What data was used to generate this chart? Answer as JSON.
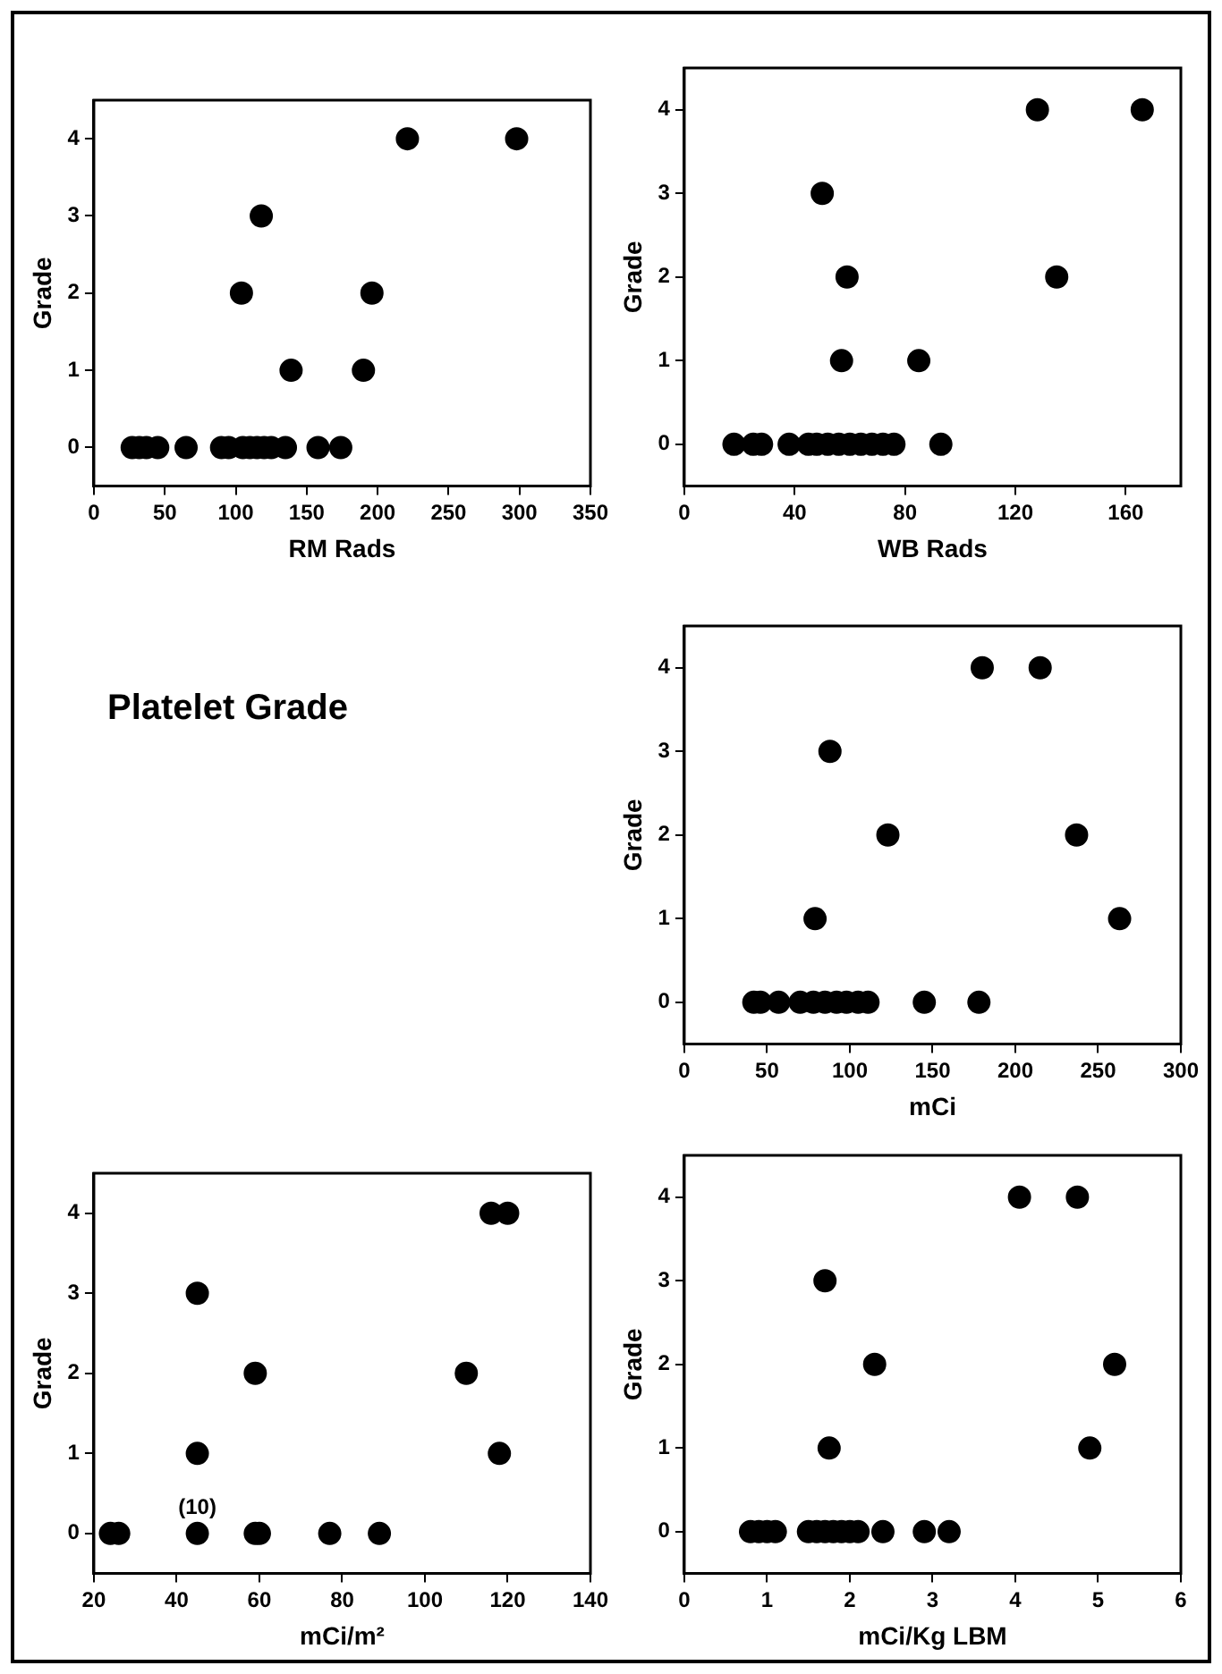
{
  "chart_data": [
    {
      "type": "scatter",
      "xlabel": "RM Rads",
      "ylabel": "Grade",
      "xlim": [
        0,
        350
      ],
      "xticks": [
        0,
        50,
        100,
        150,
        200,
        250,
        300,
        350
      ],
      "ylim": [
        -0.5,
        4.5
      ],
      "yticks": [
        0,
        1,
        2,
        3,
        4
      ],
      "grid": false,
      "legend": false,
      "marker": "circle",
      "series": [
        {
          "color": "#000000",
          "x": [
            27,
            32,
            37,
            45,
            65,
            90,
            95,
            105,
            110,
            115,
            120,
            125,
            135,
            158,
            174,
            139,
            190,
            104,
            196,
            118,
            221,
            298
          ],
          "values": [
            0,
            0,
            0,
            0,
            0,
            0,
            0,
            0,
            0,
            0,
            0,
            0,
            0,
            0,
            0,
            1,
            1,
            2,
            2,
            3,
            4,
            4
          ]
        }
      ]
    },
    {
      "type": "scatter",
      "xlabel": "WB Rads",
      "ylabel": "Grade",
      "xlim": [
        0,
        180
      ],
      "xticks": [
        0,
        40,
        80,
        120,
        160
      ],
      "ylim": [
        -0.5,
        4.5
      ],
      "yticks": [
        0,
        1,
        2,
        3,
        4
      ],
      "grid": false,
      "legend": false,
      "marker": "circle",
      "series": [
        {
          "color": "#000000",
          "x": [
            18,
            25,
            28,
            38,
            45,
            48,
            52,
            56,
            60,
            64,
            68,
            72,
            76,
            93,
            57,
            85,
            59,
            135,
            50,
            128,
            166
          ],
          "values": [
            0,
            0,
            0,
            0,
            0,
            0,
            0,
            0,
            0,
            0,
            0,
            0,
            0,
            0,
            1,
            1,
            2,
            2,
            3,
            4,
            4
          ]
        }
      ]
    },
    {
      "type": "other",
      "title": "Platelet Grade"
    },
    {
      "type": "scatter",
      "xlabel": "mCi",
      "ylabel": "Grade",
      "xlim": [
        0,
        300
      ],
      "xticks": [
        0,
        50,
        100,
        150,
        200,
        250,
        300
      ],
      "ylim": [
        -0.5,
        4.5
      ],
      "yticks": [
        0,
        1,
        2,
        3,
        4
      ],
      "grid": false,
      "legend": false,
      "marker": "circle",
      "series": [
        {
          "color": "#000000",
          "x": [
            42,
            46,
            57,
            70,
            78,
            85,
            92,
            98,
            105,
            111,
            145,
            178,
            79,
            263,
            123,
            237,
            88,
            180,
            215
          ],
          "values": [
            0,
            0,
            0,
            0,
            0,
            0,
            0,
            0,
            0,
            0,
            0,
            0,
            1,
            1,
            2,
            2,
            3,
            4,
            4
          ]
        }
      ]
    },
    {
      "type": "scatter",
      "xlabel": "mCi/m²",
      "ylabel": "Grade",
      "xlim": [
        20,
        140
      ],
      "xticks": [
        20,
        40,
        60,
        80,
        100,
        120,
        140
      ],
      "ylim": [
        -0.5,
        4.5
      ],
      "yticks": [
        0,
        1,
        2,
        3,
        4
      ],
      "grid": false,
      "legend": false,
      "marker": "circle",
      "annotations": [
        {
          "text": "(10)",
          "x": 45,
          "y": 0
        }
      ],
      "series": [
        {
          "color": "#000000",
          "x": [
            24,
            26,
            45,
            59,
            60,
            77,
            89,
            45,
            118,
            59,
            110,
            45,
            116,
            120
          ],
          "values": [
            0,
            0,
            0,
            0,
            0,
            0,
            0,
            1,
            1,
            2,
            2,
            3,
            4,
            4
          ]
        }
      ]
    },
    {
      "type": "scatter",
      "xlabel": "mCi/Kg LBM",
      "ylabel": "Grade",
      "xlim": [
        0,
        6
      ],
      "xticks": [
        0,
        1,
        2,
        3,
        4,
        5,
        6
      ],
      "ylim": [
        -0.5,
        4.5
      ],
      "yticks": [
        0,
        1,
        2,
        3,
        4
      ],
      "grid": false,
      "legend": false,
      "marker": "circle",
      "series": [
        {
          "color": "#000000",
          "x": [
            0.8,
            0.9,
            1.0,
            1.1,
            1.5,
            1.6,
            1.7,
            1.8,
            1.9,
            2.0,
            2.1,
            2.4,
            2.9,
            3.2,
            1.75,
            4.9,
            2.3,
            5.2,
            1.7,
            4.05,
            4.75
          ],
          "values": [
            0,
            0,
            0,
            0,
            0,
            0,
            0,
            0,
            0,
            0,
            0,
            0,
            0,
            0,
            1,
            1,
            2,
            2,
            3,
            4,
            4
          ]
        }
      ]
    }
  ]
}
